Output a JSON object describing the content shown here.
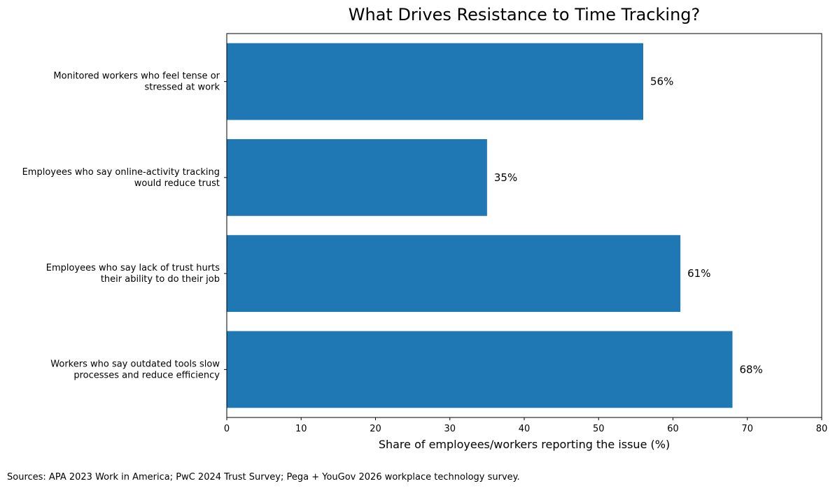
{
  "chart_data": {
    "type": "bar",
    "orientation": "horizontal",
    "title": "What Drives Resistance to Time Tracking?",
    "xlabel": "Share of employees/workers reporting the issue (%)",
    "ylabel": "",
    "categories": [
      [
        "Monitored workers who feel tense or",
        "stressed at work"
      ],
      [
        "Employees who say online-activity tracking",
        "would reduce trust"
      ],
      [
        "Employees who say lack of trust hurts",
        "their ability to do their job"
      ],
      [
        "Workers who say outdated tools slow",
        "processes and reduce efficiency"
      ]
    ],
    "values": [
      56,
      35,
      61,
      68
    ],
    "value_labels": [
      "56%",
      "35%",
      "61%",
      "68%"
    ],
    "xlim": [
      0,
      80
    ],
    "xticks": [
      0,
      10,
      20,
      30,
      40,
      50,
      60,
      70,
      80
    ],
    "grid": false,
    "colors": {
      "bar": "#1f77b4",
      "axis": "#000000",
      "background": "#ffffff"
    }
  },
  "footer": {
    "source": "Sources: APA 2023 Work in America; PwC 2024 Trust Survey; Pega + YouGov 2026 workplace technology survey."
  }
}
